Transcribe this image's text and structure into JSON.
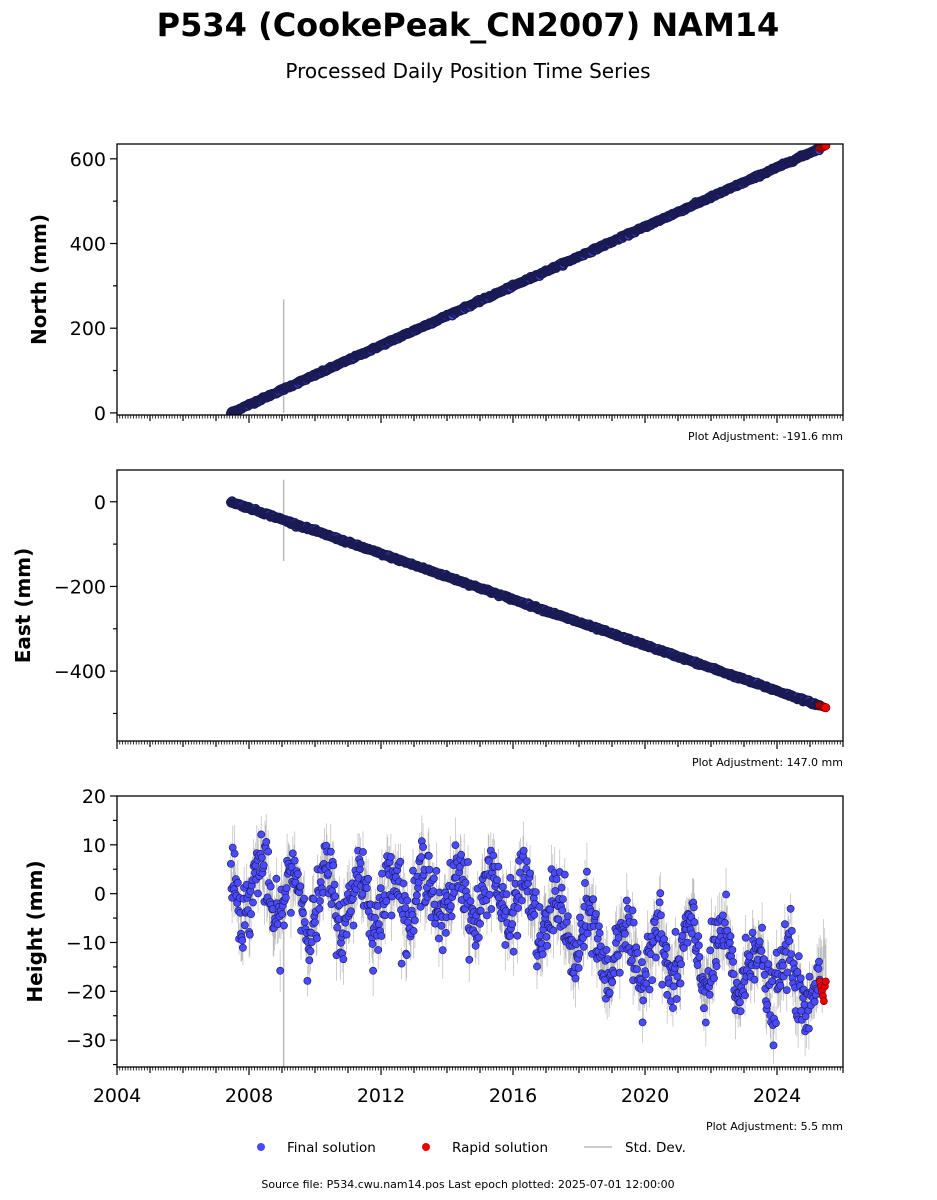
{
  "title": "P534 (CookePeak_CN2007) NAM14",
  "subtitle": "Processed Daily Position Time Series",
  "footer": "Source file: P534.cwu.nam14.pos  Last epoch plotted: 2025-07-01 12:00:00",
  "legend": {
    "final": "Final solution",
    "rapid": "Rapid solution",
    "stddev": "Std. Dev."
  },
  "colors": {
    "final": "#4a4aff",
    "final_edge": "#1a1a55",
    "rapid": "#ee0000",
    "stddev": "#bbbbbb",
    "axis": "#000000"
  },
  "chart_data": [
    {
      "type": "scatter",
      "name": "north",
      "ylabel": "North (mm)",
      "adjustment": "Plot Adjustment: -191.6 mm",
      "xlim": [
        2004.0,
        2026.0
      ],
      "ylim": [
        -5,
        635
      ],
      "yticks": [
        0,
        200,
        400,
        600
      ],
      "ytick_labels": [
        "0",
        "200",
        "400",
        "600"
      ],
      "major_minor_step": 100,
      "start_year": 2007.45,
      "end_year": 2025.5,
      "start_value": 0,
      "end_value": 632,
      "rapid_from_year": 2025.3,
      "noise_mm": 1.5,
      "outlier": {
        "x": 2009.05,
        "y_low": 0,
        "y_high": 268
      }
    },
    {
      "type": "scatter",
      "name": "east",
      "ylabel": "East (mm)",
      "adjustment": "Plot Adjustment: 147.0 mm",
      "xlim": [
        2004.0,
        2026.0
      ],
      "ylim": [
        -565,
        75
      ],
      "yticks": [
        0,
        -200,
        -400
      ],
      "ytick_labels": [
        "0",
        "−200",
        "−400"
      ],
      "major_minor_step": 100,
      "start_year": 2007.45,
      "end_year": 2025.5,
      "start_value": 0,
      "end_value": -487,
      "rapid_from_year": 2025.3,
      "noise_mm": 1.5,
      "outlier": {
        "x": 2009.05,
        "y_low": -140,
        "y_high": 52
      }
    },
    {
      "type": "scatter",
      "name": "height",
      "ylabel": "Height (mm)",
      "adjustment": "Plot Adjustment: 5.5 mm",
      "xlim": [
        2004.0,
        2026.0
      ],
      "ylim": [
        -35.5,
        20
      ],
      "yticks": [
        20,
        10,
        0,
        -10,
        -20,
        -30
      ],
      "ytick_labels": [
        "20",
        "10",
        "0",
        "−10",
        "−20",
        "−30"
      ],
      "major_minor_step": 5,
      "start_year": 2007.45,
      "end_year": 2025.5,
      "trend_points": [
        [
          2007.45,
          2
        ],
        [
          2010,
          -2
        ],
        [
          2013,
          0
        ],
        [
          2016,
          -1
        ],
        [
          2019,
          -12
        ],
        [
          2022,
          -13
        ],
        [
          2025.5,
          -20
        ]
      ],
      "seasonal_amp_mm": 6,
      "noise_mm": 3.5,
      "rapid_from_year": 2025.3,
      "rapid_values": [
        -18,
        -19,
        -20,
        -21,
        -22,
        -19,
        -18,
        -20
      ],
      "outlier": {
        "x": 2009.05,
        "y_low": -35.5,
        "y_high": 2
      }
    }
  ],
  "x_axis": {
    "ticks": [
      2004,
      2008,
      2012,
      2016,
      2020,
      2024
    ],
    "tick_labels": [
      "2004",
      "2008",
      "2012",
      "2016",
      "2020",
      "2024"
    ]
  }
}
